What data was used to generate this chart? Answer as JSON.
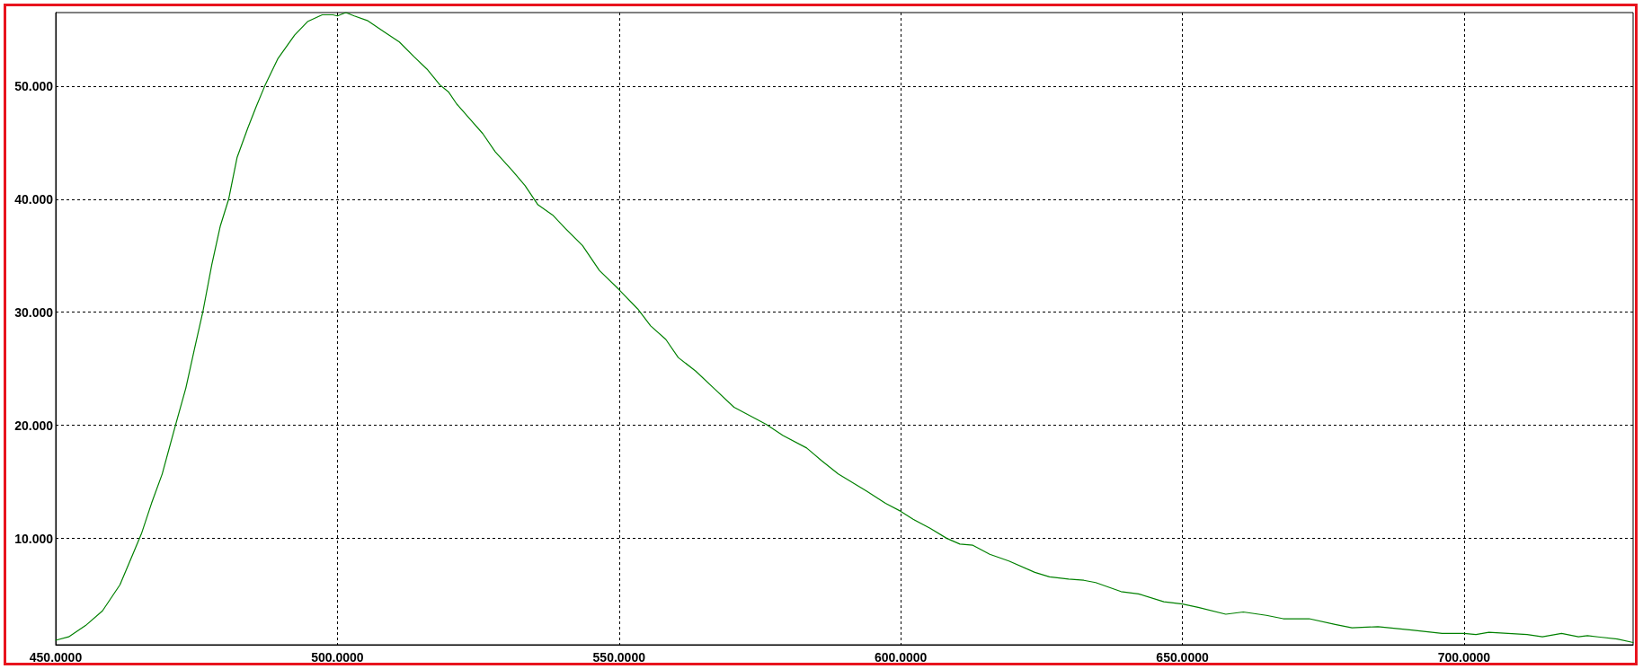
{
  "chart_data": {
    "type": "line",
    "color": "#008000",
    "marker": "none",
    "line_style": "solid",
    "grid": true,
    "xlim": [
      450,
      730
    ],
    "ylim": [
      0.6,
      56.5
    ],
    "xticks": [
      {
        "value": 450,
        "label": "450.0000"
      },
      {
        "value": 500,
        "label": "500.0000"
      },
      {
        "value": 550,
        "label": "550.0000"
      },
      {
        "value": 600,
        "label": "600.0000"
      },
      {
        "value": 650,
        "label": "650.0000"
      },
      {
        "value": 700,
        "label": "700.0000"
      }
    ],
    "yticks": [
      {
        "value": 10,
        "label": "10.000"
      },
      {
        "value": 20,
        "label": "20.000"
      },
      {
        "value": 30,
        "label": "30.000"
      },
      {
        "value": 40,
        "label": "40.000"
      },
      {
        "value": 50,
        "label": "50.000"
      }
    ],
    "x": [
      450,
      452.3,
      455.3,
      458.3,
      461.4,
      463.6,
      465.2,
      467,
      468.9,
      471.2,
      473.1,
      474.6,
      476.1,
      477.7,
      479.2,
      480.7,
      482.2,
      484.1,
      485.6,
      487.1,
      489.4,
      492.4,
      494.7,
      497.3,
      499.2,
      500,
      501.5,
      503,
      505.3,
      508.3,
      511,
      513.6,
      515.9,
      518.2,
      519.7,
      521.2,
      523.5,
      525.8,
      528,
      531.1,
      533.3,
      535.6,
      538.2,
      540.5,
      543.5,
      546.5,
      550,
      553.3,
      555.6,
      558.3,
      560.5,
      563.6,
      567,
      570.4,
      576.1,
      579.1,
      583.3,
      585.9,
      588.9,
      593.9,
      597.3,
      600,
      602.2,
      605.2,
      608.2,
      610.5,
      612.8,
      615.8,
      619.2,
      623.8,
      626.4,
      629.8,
      632.5,
      634.6,
      639.1,
      642.2,
      646.7,
      650,
      652.8,
      657.7,
      660.8,
      664.9,
      667.9,
      672.5,
      677.1,
      680.1,
      684.7,
      690.7,
      696.1,
      700,
      702.1,
      704.4,
      711.2,
      713.9,
      717.3,
      720.3,
      721.9,
      727.2,
      730
    ],
    "values": [
      1.0,
      1.3,
      2.3,
      3.6,
      5.9,
      8.5,
      10.4,
      13.1,
      15.7,
      19.9,
      23.3,
      26.7,
      30.0,
      34.2,
      37.6,
      40.0,
      43.7,
      46.3,
      48.2,
      50.0,
      52.4,
      54.5,
      55.7,
      56.3,
      56.3,
      56.2,
      56.5,
      56.2,
      55.8,
      54.8,
      53.9,
      52.6,
      51.5,
      50.1,
      49.5,
      48.4,
      47.1,
      45.8,
      44.2,
      42.5,
      41.2,
      39.5,
      38.6,
      37.4,
      35.9,
      33.7,
      32.0,
      30.3,
      28.8,
      27.6,
      26.0,
      24.8,
      23.2,
      21.6,
      20.1,
      19.1,
      18.0,
      16.9,
      15.7,
      14.2,
      13.1,
      12.4,
      11.7,
      10.9,
      10.0,
      9.5,
      9.4,
      8.6,
      8.0,
      7.0,
      6.6,
      6.4,
      6.3,
      6.1,
      5.3,
      5.1,
      4.4,
      4.2,
      3.9,
      3.3,
      3.5,
      3.2,
      2.9,
      2.9,
      2.4,
      2.1,
      2.2,
      1.9,
      1.6,
      1.6,
      1.5,
      1.7,
      1.5,
      1.3,
      1.6,
      1.3,
      1.4,
      1.1,
      0.8
    ]
  }
}
